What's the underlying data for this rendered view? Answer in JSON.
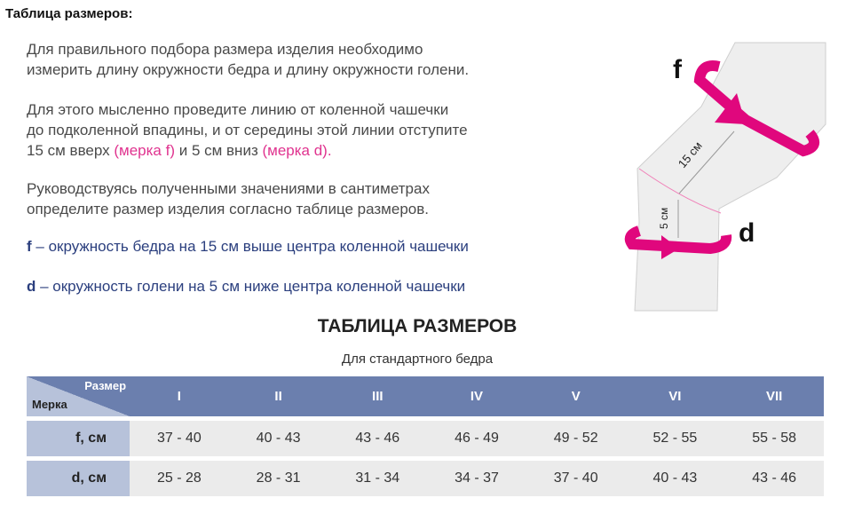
{
  "title": "Таблица размеров:",
  "intro": {
    "p1": [
      "Для правильного подбора размера изделия необходимо",
      "измерить длину окружности бедра и длину окружности голени."
    ],
    "p2": [
      "Для этого мысленно проведите линию от коленной чашечки",
      "до подколенной впадины, и от середины этой линии отступите"
    ],
    "p2_last": {
      "a": "15 см вверх ",
      "b": "(мерка f)",
      "c": " и 5 см вниз ",
      "d": "(мерка d)."
    },
    "p3": [
      "Руководствуясь полученными значениями в сантиметрах",
      "определите размер изделия согласно таблице размеров."
    ],
    "f_def": {
      "letter": "f",
      "text": " – окружность бедра на 15 см выше центра коленной чашечки"
    },
    "d_def": {
      "letter": "d",
      "text": " – окружность голени на 5 см ниже центра коленной чашечки"
    }
  },
  "diagram": {
    "f": "f",
    "d": "d",
    "len15": "15 см",
    "len5": "5 см",
    "accent": "#e0077d"
  },
  "table": {
    "title": "ТАБЛИЦА РАЗМЕРОВ",
    "subtitle": "Для стандартного бедра",
    "corner_top": "Размер",
    "corner_bottom": "Мерка",
    "sizes": [
      "I",
      "II",
      "III",
      "IV",
      "V",
      "VI",
      "VII"
    ],
    "rows": [
      {
        "label": "f, см",
        "values": [
          "37 - 40",
          "40 - 43",
          "43 - 46",
          "46 - 49",
          "49 - 52",
          "52 - 55",
          "55 - 58"
        ]
      },
      {
        "label": "d, см",
        "values": [
          "25 - 28",
          "28 - 31",
          "31 - 34",
          "34 - 37",
          "37 - 40",
          "40 - 43",
          "43 - 46"
        ]
      }
    ],
    "colors": {
      "header": "#6b7fae",
      "label": "#b7c2da",
      "cell": "#ebebeb"
    }
  }
}
